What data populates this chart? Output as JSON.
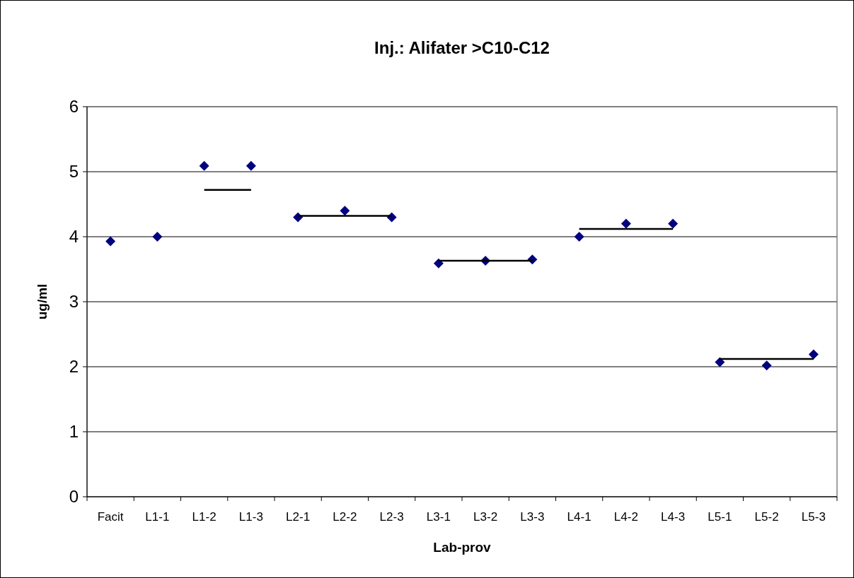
{
  "chart_data": {
    "type": "scatter",
    "title": "Inj.: Alifater >C10-C12",
    "xlabel": "Lab-prov",
    "ylabel": "ug/ml",
    "categories": [
      "Facit",
      "L1-1",
      "L1-2",
      "L1-3",
      "L2-1",
      "L2-2",
      "L2-3",
      "L3-1",
      "L3-2",
      "L3-3",
      "L4-1",
      "L4-2",
      "L4-3",
      "L5-1",
      "L5-2",
      "L5-3"
    ],
    "series": [
      {
        "color": "#000080",
        "marker": "diamond",
        "values": [
          3.93,
          4.0,
          5.09,
          5.09,
          4.3,
          4.4,
          4.3,
          3.59,
          3.63,
          3.65,
          4.0,
          4.2,
          4.2,
          2.07,
          2.02,
          2.19
        ]
      },
      {
        "type": "line",
        "color": "#000000",
        "marker": "none",
        "x": [
          "L1-2",
          "L1-3"
        ],
        "values": [
          4.72,
          4.72
        ]
      },
      {
        "type": "line",
        "color": "#000000",
        "marker": "none",
        "x": [
          "L2-1",
          "L2-3"
        ],
        "values": [
          4.32,
          4.32
        ]
      },
      {
        "type": "line",
        "color": "#000000",
        "marker": "none",
        "x": [
          "L3-1",
          "L3-3"
        ],
        "values": [
          3.63,
          3.63
        ]
      },
      {
        "type": "line",
        "color": "#000000",
        "marker": "none",
        "x": [
          "L4-1",
          "L4-3"
        ],
        "values": [
          4.12,
          4.12
        ]
      },
      {
        "type": "line",
        "color": "#000000",
        "marker": "none",
        "x": [
          "L5-1",
          "L5-3"
        ],
        "values": [
          2.12,
          2.12
        ]
      }
    ],
    "ylim": [
      0,
      6
    ],
    "yticks": [
      0,
      1,
      2,
      3,
      4,
      5,
      6
    ],
    "grid": "y"
  }
}
